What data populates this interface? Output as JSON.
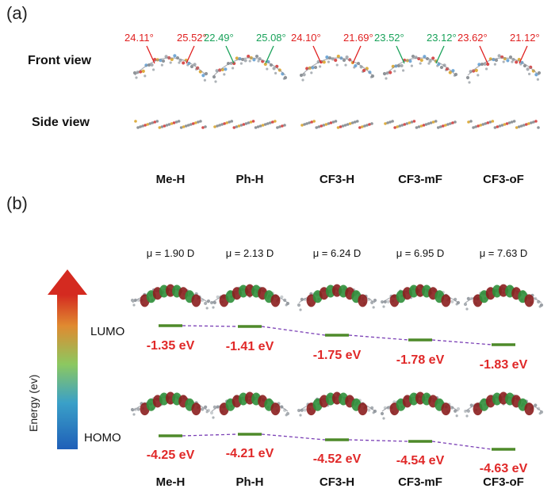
{
  "panel_a": {
    "label": "(a)",
    "front_view_label": "Front view",
    "side_view_label": "Side view",
    "molecules": [
      {
        "name": "Me-H",
        "angle_left": "24.11°",
        "angle_right": "25.52°",
        "angle_color": "#e02020"
      },
      {
        "name": "Ph-H",
        "angle_left": "22.49°",
        "angle_right": "25.08°",
        "angle_color": "#19a25a"
      },
      {
        "name": "CF3-H",
        "angle_left": "24.10°",
        "angle_right": "21.69°",
        "angle_color": "#e02020"
      },
      {
        "name": "CF3-mF",
        "angle_left": "23.52°",
        "angle_right": "23.12°",
        "angle_color": "#19a25a"
      },
      {
        "name": "CF3-oF",
        "angle_left": "23.62°",
        "angle_right": "21.12°",
        "angle_color": "#e02020"
      }
    ]
  },
  "panel_b": {
    "label": "(b)",
    "axis_label": "Energy (ev)",
    "lumo_label": "LUMO",
    "homo_label": "HOMO",
    "molecules": [
      {
        "name": "Me-H",
        "dipole": "μ = 1.90 D",
        "lumo": "-1.35 eV",
        "homo": "-4.25 eV"
      },
      {
        "name": "Ph-H",
        "dipole": "μ = 2.13 D",
        "lumo": "-1.41 eV",
        "homo": "-4.21 eV"
      },
      {
        "name": "CF3-H",
        "dipole": "μ = 6.24 D",
        "lumo": "-1.75 eV",
        "homo": "-4.52 eV"
      },
      {
        "name": "CF3-mF",
        "dipole": "μ = 6.95 D",
        "lumo": "-1.78 eV",
        "homo": "-4.54 eV"
      },
      {
        "name": "CF3-oF",
        "dipole": "μ = 7.63 D",
        "lumo": "-1.83 eV",
        "homo": "-4.63 eV"
      }
    ],
    "colors": {
      "level": "#4e8a2a",
      "connector": "#7a3fb5",
      "energy_text": "#e02828"
    }
  }
}
